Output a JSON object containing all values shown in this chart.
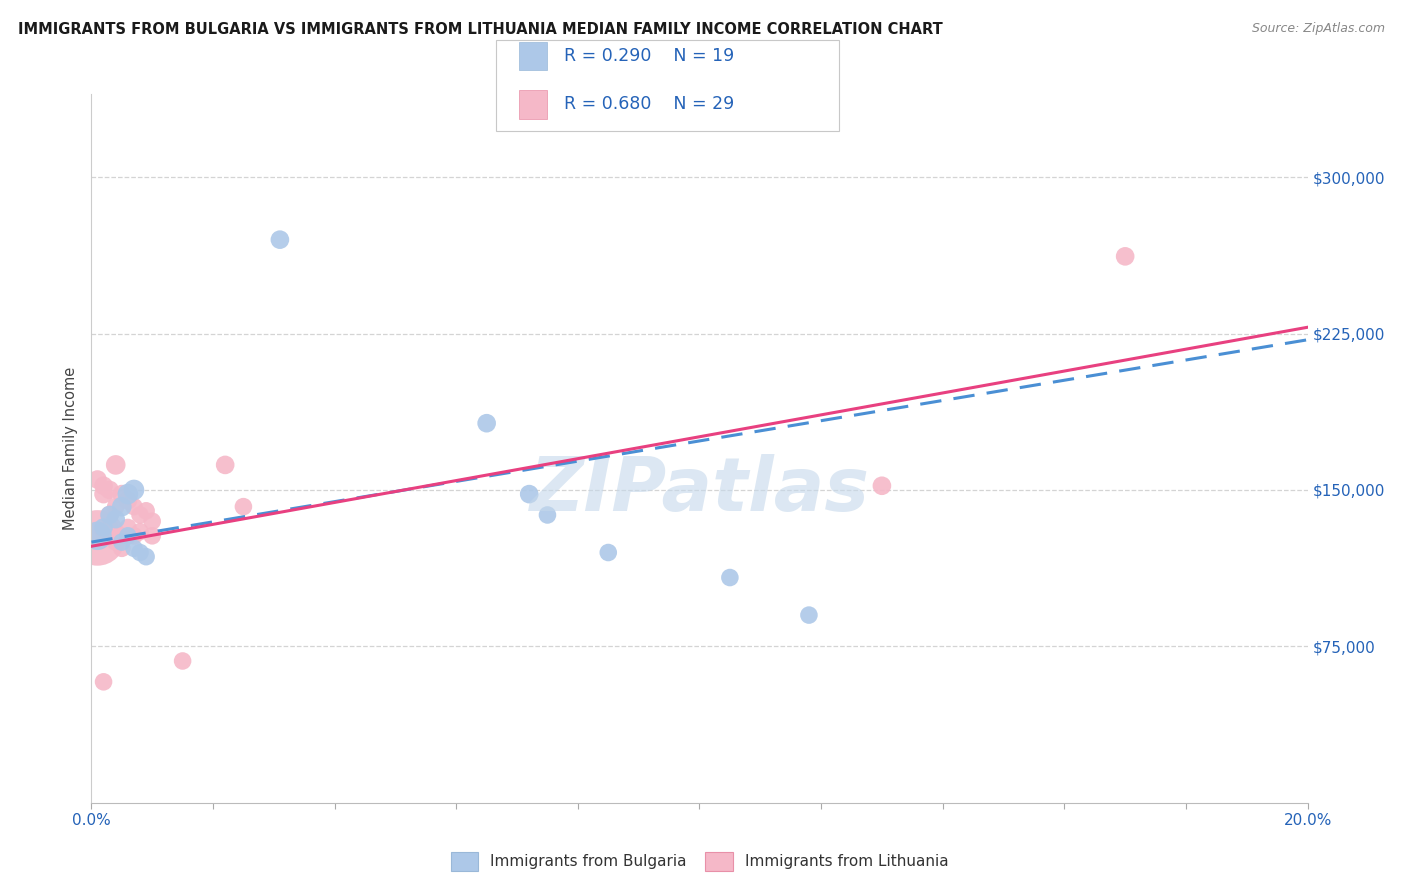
{
  "title": "IMMIGRANTS FROM BULGARIA VS IMMIGRANTS FROM LITHUANIA MEDIAN FAMILY INCOME CORRELATION CHART",
  "source": "Source: ZipAtlas.com",
  "ylabel": "Median Family Income",
  "xlim": [
    0.0,
    0.2
  ],
  "ylim": [
    0,
    340000
  ],
  "yticks": [
    75000,
    150000,
    225000,
    300000
  ],
  "ytick_labels": [
    "$75,000",
    "$150,000",
    "$225,000",
    "$300,000"
  ],
  "xtick_positions": [
    0.0,
    0.02,
    0.04,
    0.06,
    0.08,
    0.1,
    0.12,
    0.14,
    0.16,
    0.18,
    0.2
  ],
  "xtick_labels": [
    "0.0%",
    "",
    "",
    "",
    "",
    "",
    "",
    "",
    "",
    "",
    "20.0%"
  ],
  "watermark": "ZIPatlas",
  "legend_label_bulgaria": "Immigrants from Bulgaria",
  "legend_label_lithuania": "Immigrants from Lithuania",
  "bulgaria_face_color": "#adc8e8",
  "bulgaria_edge_color": "#5b9bd5",
  "lithuania_face_color": "#f5b8c8",
  "lithuania_edge_color": "#e8507a",
  "legend_text_color": "#2563b8",
  "right_label_color": "#2563b8",
  "xtick_color": "#2563b8",
  "title_color": "#1a1a1a",
  "background_color": "#ffffff",
  "grid_color": "#d0d0d0",
  "source_color": "#888888",
  "ylabel_color": "#444444",
  "bulgaria_line_color": "#4a8fd4",
  "lithuania_line_color": "#e84080",
  "bulgaria_regression": [
    0.0,
    125000,
    0.2,
    222000
  ],
  "lithuania_regression": [
    0.0,
    123000,
    0.2,
    228000
  ],
  "bulgaria_points": [
    [
      0.001,
      128000,
      420
    ],
    [
      0.002,
      132000,
      180
    ],
    [
      0.003,
      138000,
      180
    ],
    [
      0.004,
      136000,
      180
    ],
    [
      0.005,
      142000,
      200
    ],
    [
      0.005,
      125000,
      160
    ],
    [
      0.006,
      148000,
      220
    ],
    [
      0.006,
      128000,
      160
    ],
    [
      0.007,
      150000,
      220
    ],
    [
      0.007,
      122000,
      160
    ],
    [
      0.008,
      120000,
      160
    ],
    [
      0.009,
      118000,
      160
    ],
    [
      0.031,
      270000,
      180
    ],
    [
      0.065,
      182000,
      180
    ],
    [
      0.072,
      148000,
      180
    ],
    [
      0.075,
      138000,
      160
    ],
    [
      0.085,
      120000,
      160
    ],
    [
      0.105,
      108000,
      160
    ],
    [
      0.118,
      90000,
      160
    ]
  ],
  "lithuania_points": [
    [
      0.001,
      127000,
      1600
    ],
    [
      0.001,
      155000,
      180
    ],
    [
      0.002,
      152000,
      180
    ],
    [
      0.002,
      148000,
      180
    ],
    [
      0.002,
      130000,
      160
    ],
    [
      0.003,
      150000,
      180
    ],
    [
      0.003,
      138000,
      180
    ],
    [
      0.003,
      132000,
      160
    ],
    [
      0.004,
      162000,
      200
    ],
    [
      0.004,
      142000,
      160
    ],
    [
      0.004,
      125000,
      160
    ],
    [
      0.005,
      148000,
      180
    ],
    [
      0.005,
      128000,
      160
    ],
    [
      0.005,
      122000,
      160
    ],
    [
      0.006,
      145000,
      180
    ],
    [
      0.006,
      132000,
      160
    ],
    [
      0.007,
      142000,
      160
    ],
    [
      0.007,
      128000,
      160
    ],
    [
      0.008,
      138000,
      160
    ],
    [
      0.008,
      130000,
      160
    ],
    [
      0.009,
      140000,
      160
    ],
    [
      0.01,
      135000,
      160
    ],
    [
      0.01,
      128000,
      160
    ],
    [
      0.015,
      68000,
      160
    ],
    [
      0.022,
      162000,
      180
    ],
    [
      0.025,
      142000,
      160
    ],
    [
      0.13,
      152000,
      180
    ],
    [
      0.17,
      262000,
      180
    ],
    [
      0.002,
      58000,
      160
    ]
  ]
}
